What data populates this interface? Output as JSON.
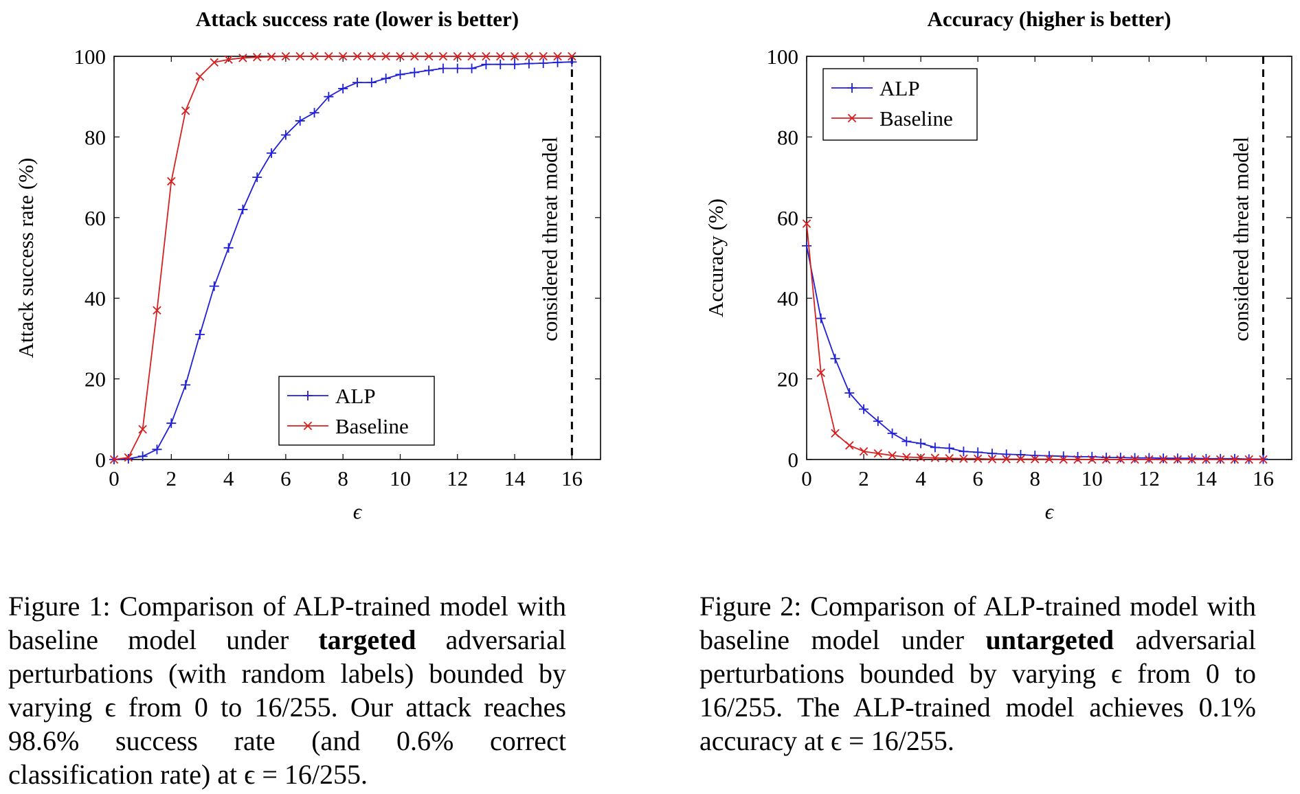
{
  "chart_data": [
    {
      "type": "line",
      "title": "Attack success rate (lower is better)",
      "xlabel": "ϵ",
      "ylabel": "Attack success rate (%)",
      "xlim": [
        0,
        17
      ],
      "ylim": [
        0,
        100
      ],
      "xticks": [
        0,
        2,
        4,
        6,
        8,
        10,
        12,
        14,
        16
      ],
      "yticks": [
        0,
        20,
        40,
        60,
        80,
        100
      ],
      "grid": false,
      "legend_position": "bottom-center",
      "annotation": {
        "x": 16,
        "text": "considered threat model"
      },
      "x": [
        0,
        0.5,
        1,
        1.5,
        2,
        2.5,
        3,
        3.5,
        4,
        4.5,
        5,
        5.5,
        6,
        6.5,
        7,
        7.5,
        8,
        8.5,
        9,
        9.5,
        10,
        10.5,
        11,
        11.5,
        12,
        12.5,
        13,
        13.5,
        14,
        14.5,
        15,
        15.5,
        16
      ],
      "series": [
        {
          "name": "ALP",
          "color": "#1f1fd6",
          "marker": "plus",
          "values": [
            0,
            0.2,
            0.8,
            2.5,
            9.0,
            18.5,
            31,
            43,
            52.5,
            62,
            70,
            76,
            80.5,
            84,
            86,
            90,
            92,
            93.5,
            93.5,
            94.5,
            95.5,
            96,
            96.5,
            97,
            97,
            97,
            98,
            98,
            98,
            98.2,
            98.3,
            98.5,
            98.6
          ]
        },
        {
          "name": "Baseline",
          "color": "#d62020",
          "marker": "cross",
          "values": [
            0,
            0.5,
            7.5,
            37,
            69,
            86.5,
            95,
            98.5,
            99.2,
            99.6,
            99.8,
            99.9,
            100,
            100,
            100,
            100,
            100,
            100,
            100,
            100,
            100,
            100,
            100,
            100,
            100,
            100,
            100,
            100,
            100,
            100,
            100,
            100,
            100
          ]
        }
      ]
    },
    {
      "type": "line",
      "title": "Accuracy (higher is better)",
      "xlabel": "ϵ",
      "ylabel": "Accuracy (%)",
      "xlim": [
        0,
        17
      ],
      "ylim": [
        0,
        100
      ],
      "xticks": [
        0,
        2,
        4,
        6,
        8,
        10,
        12,
        14,
        16
      ],
      "yticks": [
        0,
        20,
        40,
        60,
        80,
        100
      ],
      "grid": false,
      "legend_position": "top-left",
      "annotation": {
        "x": 16,
        "text": "considered threat model"
      },
      "x": [
        0,
        0.5,
        1,
        1.5,
        2,
        2.5,
        3,
        3.5,
        4,
        4.5,
        5,
        5.5,
        6,
        6.5,
        7,
        7.5,
        8,
        8.5,
        9,
        9.5,
        10,
        10.5,
        11,
        11.5,
        12,
        12.5,
        13,
        13.5,
        14,
        14.5,
        15,
        15.5,
        16
      ],
      "series": [
        {
          "name": "ALP",
          "color": "#1f1fd6",
          "marker": "plus",
          "values": [
            53,
            35,
            25,
            16.5,
            12.5,
            9.5,
            6.5,
            4.5,
            4,
            3,
            2.8,
            2,
            1.8,
            1.5,
            1.3,
            1.2,
            1,
            0.9,
            0.8,
            0.7,
            0.7,
            0.5,
            0.5,
            0.4,
            0.4,
            0.3,
            0.3,
            0.3,
            0.2,
            0.2,
            0.2,
            0.1,
            0.1
          ]
        },
        {
          "name": "Baseline",
          "color": "#d62020",
          "marker": "cross",
          "values": [
            58.5,
            21.5,
            6.5,
            3.5,
            2,
            1.5,
            1,
            0.6,
            0.5,
            0.4,
            0.3,
            0.2,
            0.2,
            0.1,
            0.1,
            0.1,
            0.1,
            0.1,
            0,
            0,
            0,
            0,
            0,
            0,
            0,
            0,
            0,
            0,
            0,
            0,
            0,
            0,
            0
          ]
        }
      ]
    }
  ],
  "captions": [
    {
      "label": "Figure 1:",
      "text_before": "Comparison of ALP-trained model with baseline model under",
      "bold": "targeted",
      "text_after": "adversarial perturbations (with random labels) bounded by varying ϵ from 0 to 16/255. Our attack reaches 98.6% success rate (and 0.6% correct classification rate) at ϵ = 16/255."
    },
    {
      "label": "Figure 2:",
      "text_before": "Comparison of ALP-trained model with baseline model under",
      "bold": "untargeted",
      "text_after": "adversarial perturbations bounded by varying ϵ from 0 to 16/255. The ALP-trained model achieves 0.1% accuracy at ϵ = 16/255."
    }
  ]
}
